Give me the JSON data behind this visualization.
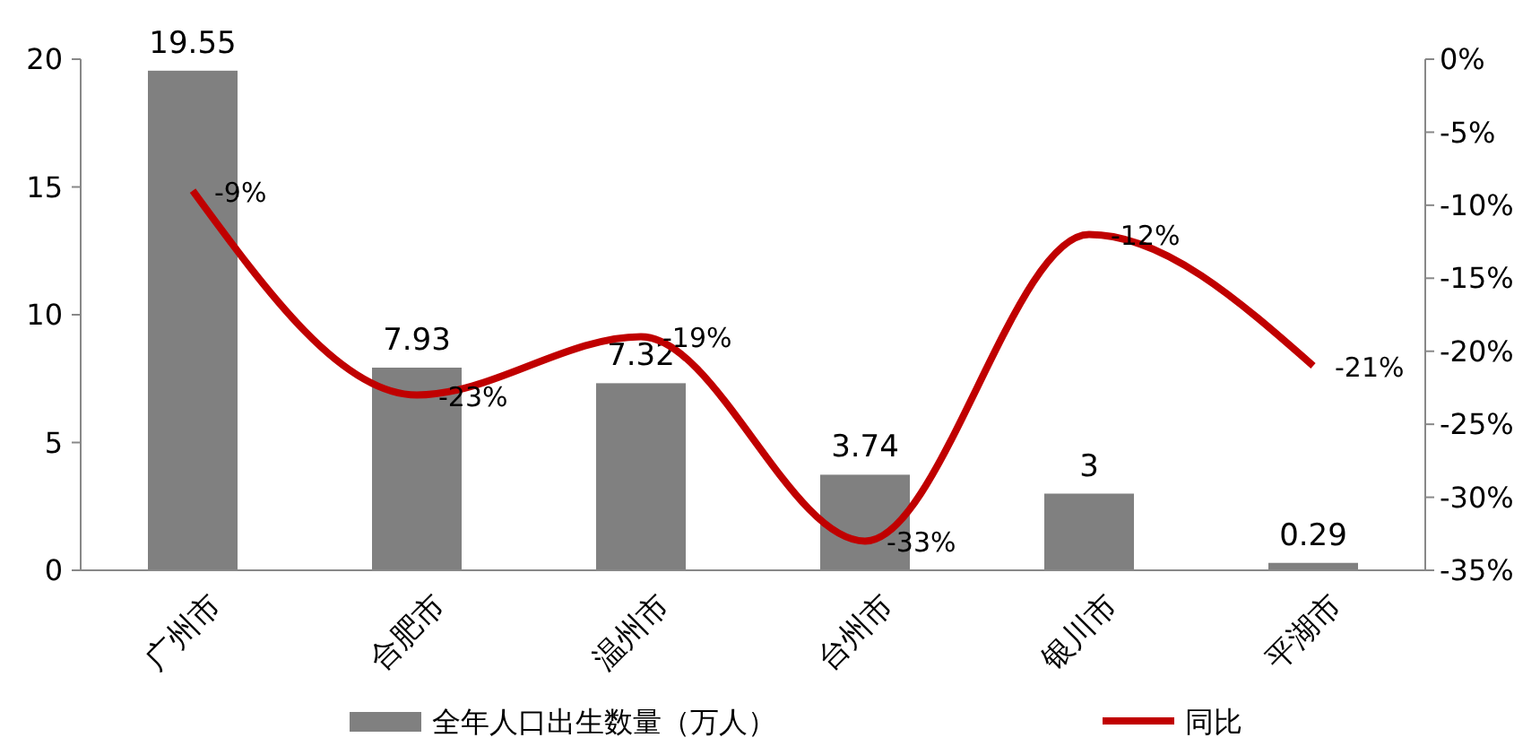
{
  "chart_data": {
    "type": "bar",
    "categories": [
      "广州市",
      "合肥市",
      "温州市",
      "台州市",
      "银川市",
      "平湖市"
    ],
    "series": [
      {
        "name": "全年人口出生数量（万人）",
        "color": "#808080",
        "values": [
          19.55,
          7.93,
          7.32,
          3.74,
          3,
          0.29
        ],
        "value_labels": [
          "19.55",
          "7.93",
          "7.32",
          "3.74",
          "3",
          "0.29"
        ]
      },
      {
        "name": "同比",
        "type": "line",
        "axis": "y2",
        "color": "#c00000",
        "values": [
          -9,
          -23,
          -19,
          -33,
          -12,
          -21
        ],
        "value_labels": [
          "-9%",
          "-23%",
          "-19%",
          "-33%",
          "-12%",
          "-21%"
        ]
      }
    ],
    "ylim": [
      0,
      20
    ],
    "yticks": [
      0,
      5,
      10,
      15,
      20
    ],
    "y2lim": [
      -35,
      0
    ],
    "y2ticks": [
      {
        "value": 0,
        "label": "0%"
      },
      {
        "value": -5,
        "label": "-5%"
      },
      {
        "value": -10,
        "label": "-10%"
      },
      {
        "value": -15,
        "label": "-15%"
      },
      {
        "value": -20,
        "label": "-20%"
      },
      {
        "value": -25,
        "label": "-25%"
      },
      {
        "value": -30,
        "label": "-30%"
      },
      {
        "value": -35,
        "label": "-35%"
      }
    ],
    "legend": "bottom",
    "grid": false
  }
}
